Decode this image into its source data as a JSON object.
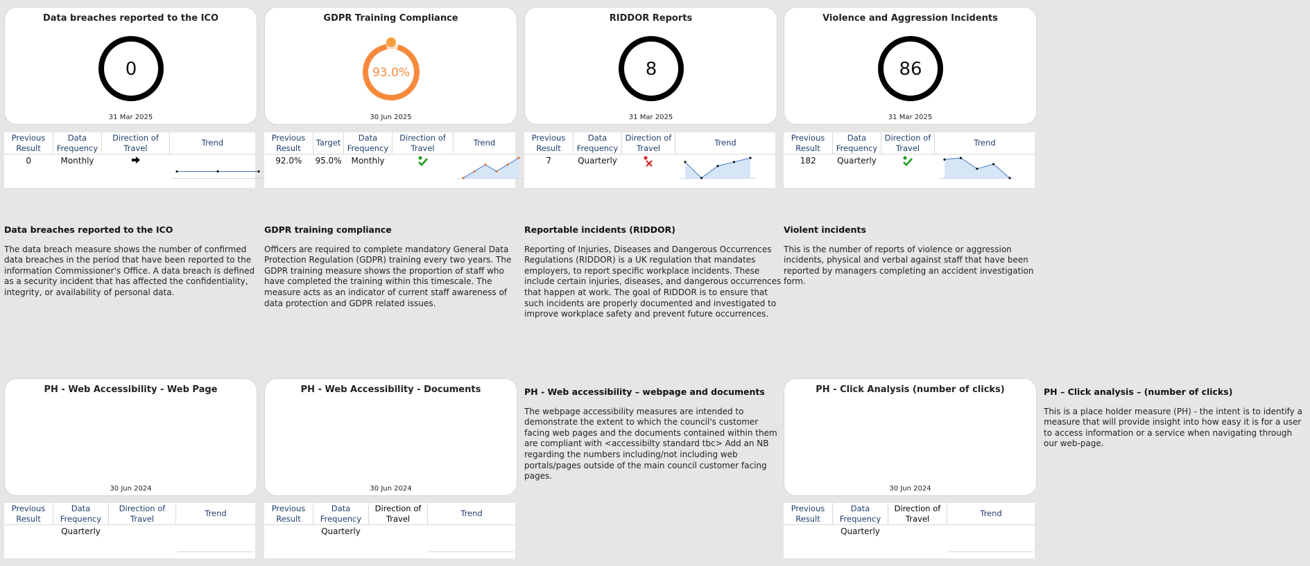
{
  "cards": [
    {
      "title": "Data breaches reported to the ICO",
      "value": "0",
      "date": "31 Mar 2025"
    },
    {
      "title": "GDPR Training Compliance",
      "value": "93.0%",
      "date": "30 Jun 2025",
      "progress": 0.93,
      "color": "#f58a3c"
    },
    {
      "title": "RIDDOR Reports",
      "value": "8",
      "date": "31 Mar 2025"
    },
    {
      "title": "Violence and Aggression Incidents",
      "value": "86",
      "date": "31 Mar 2025"
    },
    {
      "title": "PH - Web Accessibility - Web Page",
      "date": "30 Jun 2024"
    },
    {
      "title": "PH - Web Accessibility - Documents",
      "date": "30 Jun 2024"
    },
    {
      "title": "PH - Click Analysis (number of clicks)",
      "date": "30 Jun 2024"
    }
  ],
  "headers": {
    "previous": "Previous Result",
    "target": "Target",
    "frequency": "Data Frequency",
    "direction": "Direction of Travel",
    "trend": "Trend"
  },
  "tables": [
    {
      "previous": "0",
      "frequency": "Monthly",
      "direction_icon": "right-arrow-icon",
      "trend": [
        0,
        0,
        0
      ]
    },
    {
      "previous": "92.0%",
      "target": "95.0%",
      "frequency": "Monthly",
      "direction_icon": "green-check-icon",
      "trend": [
        92,
        92.5,
        93,
        92.5,
        93,
        93.5
      ]
    },
    {
      "previous": "7",
      "frequency": "Quarterly",
      "direction_icon": "red-cross-icon",
      "trend": [
        8,
        4,
        7,
        8,
        9
      ]
    },
    {
      "previous": "182",
      "frequency": "Quarterly",
      "direction_icon": "green-check-icon",
      "trend": [
        180,
        185,
        150,
        165,
        120
      ]
    },
    {
      "previous": "",
      "frequency": "Quarterly"
    },
    {
      "previous": "",
      "frequency": "Quarterly"
    },
    {
      "previous": "",
      "frequency": "Quarterly"
    }
  ],
  "descriptions": [
    {
      "title": "Data breaches reported to the ICO",
      "body": "The data breach measure shows the number of confirmed data breaches in the period that have been reported to the information Commissioner's Office. A data breach is defined as a security incident that has affected the confidentiality, integrity, or availability of personal data."
    },
    {
      "title": "GDPR training compliance",
      "body": "Officers are required to complete mandatory General Data Protection Regulation (GDPR) training every two years. The GDPR training measure shows the proportion of staff who have completed the training within this timescale. The measure acts as an indicator of current staff awareness of data protection and GDPR related issues."
    },
    {
      "title": "Reportable incidents (RIDDOR)",
      "body": "Reporting of Injuries, Diseases and Dangerous Occurrences Regulations (RIDDOR) is a UK regulation that mandates employers, to report specific workplace incidents. These include certain injuries, diseases, and dangerous occurrences that happen at work. The goal of RIDDOR is to ensure that such incidents are properly documented and investigated to improve workplace safety and prevent future occurrences."
    },
    {
      "title": "Violent incidents",
      "body": "This is the number of reports of violence or aggression incidents, physical and verbal against staff that have been reported by managers completing an accident investigation form."
    },
    {
      "title": "PH - Web accessibility – webpage and documents",
      "body": "The webpage accessibility measures are intended to demonstrate the extent to which the council's customer facing web pages and the documents contained within them are compliant with <accessibilty standard tbc> Add an NB regarding the numbers including/not including web portals/pages outside of the main council customer facing pages."
    },
    {
      "title": "PH – Click analysis – (number of clicks)",
      "body": "This is a place holder measure (PH) - the intent is to identify a measure that will provide insight into how easy it is for a user to access information or a service when navigating through our web-page."
    }
  ]
}
